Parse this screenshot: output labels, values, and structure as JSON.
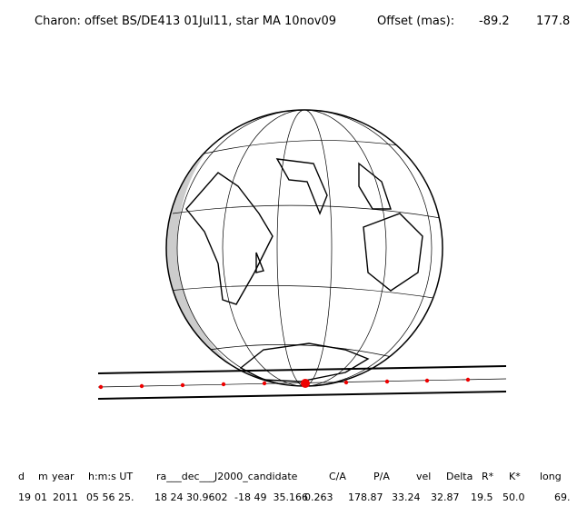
{
  "header": {
    "title": "Charon: offset BS/DE413 01Jul11, star MA 10nov09",
    "offset_label": "Offset (mas):",
    "offset": [
      "-89.2",
      "177.8"
    ]
  },
  "table": {
    "columns": [
      "d",
      "m",
      "year",
      "h:m:s UT",
      "ra___dec___J2000_candidate",
      "C/A",
      "P/A",
      "vel",
      "Delta",
      "R*",
      "K*",
      "long"
    ],
    "row": [
      "19",
      "01",
      "2011",
      "05 56 25.",
      "18 24 30.9602",
      "-18 49  35.166",
      "0.263",
      "178.87",
      "33.24",
      "32.87",
      "19.5",
      "50.0",
      "69."
    ]
  }
}
